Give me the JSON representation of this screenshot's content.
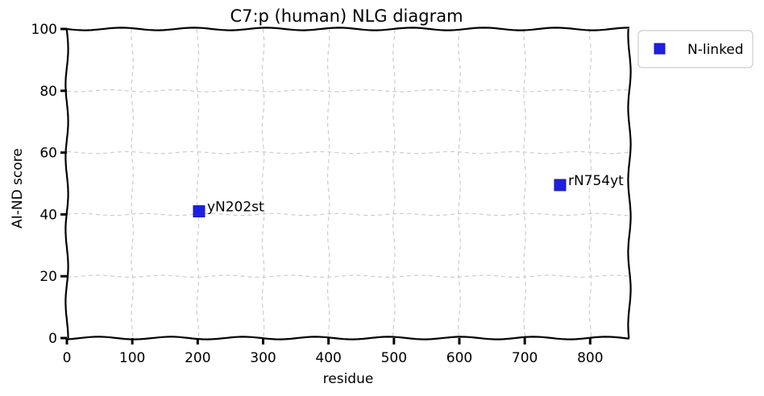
{
  "chart_data": {
    "type": "scatter",
    "title": "C7:p (human) NLG diagram",
    "xlabel": "residue",
    "ylabel": "AI-ND score",
    "xlim": [
      0,
      860
    ],
    "ylim": [
      0,
      100
    ],
    "xticks": [
      0,
      100,
      200,
      300,
      400,
      500,
      600,
      700,
      800
    ],
    "yticks": [
      0,
      20,
      40,
      60,
      80,
      100
    ],
    "grid": true,
    "legend_position": "outside-top-right",
    "series": [
      {
        "name": "N-linked",
        "color": "#1f1fe0",
        "marker": "square",
        "points": [
          {
            "x": 202,
            "y": 41,
            "label": "yN202st"
          },
          {
            "x": 754,
            "y": 49.5,
            "label": "rN754yt"
          }
        ]
      }
    ]
  }
}
